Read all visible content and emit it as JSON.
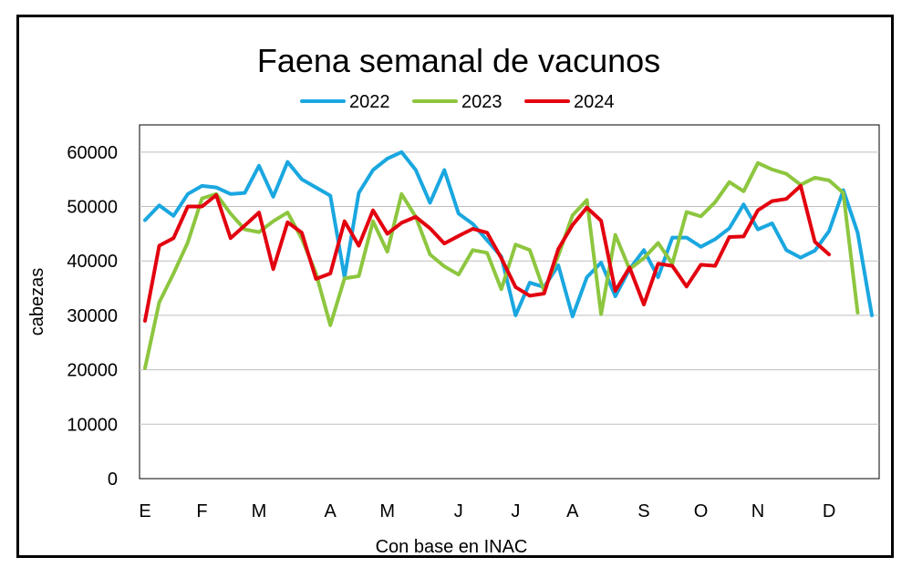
{
  "chart_data": {
    "type": "line",
    "title": "Faena semanal de vacunos",
    "xlabel": "Con base en INAC",
    "ylabel": "cabezas",
    "ylim": [
      0,
      65000
    ],
    "y_ticks": [
      0,
      10000,
      20000,
      30000,
      40000,
      50000,
      60000
    ],
    "x_ticks": [
      "E",
      "F",
      "M",
      "A",
      "M",
      "J",
      "J",
      "A",
      "S",
      "O",
      "N",
      "D"
    ],
    "x_tick_weeks": [
      1,
      5,
      9,
      14,
      18,
      23,
      27,
      31,
      36,
      40,
      44,
      49
    ],
    "grid": "horizontal",
    "legend_position": "top",
    "series": [
      {
        "name": "2022",
        "color": "#1aa7e0",
        "values": [
          47500,
          50200,
          48300,
          52300,
          53800,
          53500,
          52300,
          52500,
          57500,
          51800,
          58200,
          55000,
          53500,
          52000,
          37000,
          52500,
          56700,
          58800,
          60000,
          56700,
          50700,
          56700,
          48700,
          46800,
          43800,
          40800,
          30000,
          36000,
          35200,
          39200,
          29800,
          37000,
          39700,
          33500,
          38500,
          42000,
          37000,
          44300,
          44300,
          42600,
          44000,
          46000,
          50400,
          45800,
          46900,
          42000,
          40600,
          41900,
          45500,
          53000,
          45200,
          30000
        ]
      },
      {
        "name": "2023",
        "color": "#8dc63f",
        "values": [
          20300,
          32400,
          37700,
          43400,
          51500,
          52300,
          48700,
          45800,
          45300,
          47300,
          48900,
          44100,
          37700,
          28200,
          36800,
          37200,
          47300,
          41700,
          52300,
          48100,
          41200,
          39000,
          37500,
          42000,
          41500,
          34800,
          43000,
          42000,
          34500,
          41000,
          48400,
          51200,
          30200,
          44800,
          38500,
          40500,
          43300,
          39500,
          49000,
          48200,
          50800,
          54500,
          52800,
          58000,
          56800,
          56000,
          54000,
          55300,
          54800,
          52500,
          30500
        ]
      },
      {
        "name": "2024",
        "color": "#e3000f",
        "values": [
          29000,
          42800,
          44200,
          50000,
          50000,
          52100,
          44200,
          46500,
          48900,
          38500,
          47100,
          45200,
          36700,
          37700,
          47300,
          42800,
          49300,
          45000,
          47000,
          48100,
          46000,
          43200,
          44600,
          45900,
          45200,
          40500,
          35200,
          33600,
          34000,
          42200,
          46600,
          49800,
          47400,
          34500,
          38800,
          32000,
          39500,
          39100,
          35300,
          39300,
          39100,
          44400,
          44500,
          49300,
          51000,
          51400,
          53800,
          43500,
          41200
        ]
      }
    ]
  }
}
